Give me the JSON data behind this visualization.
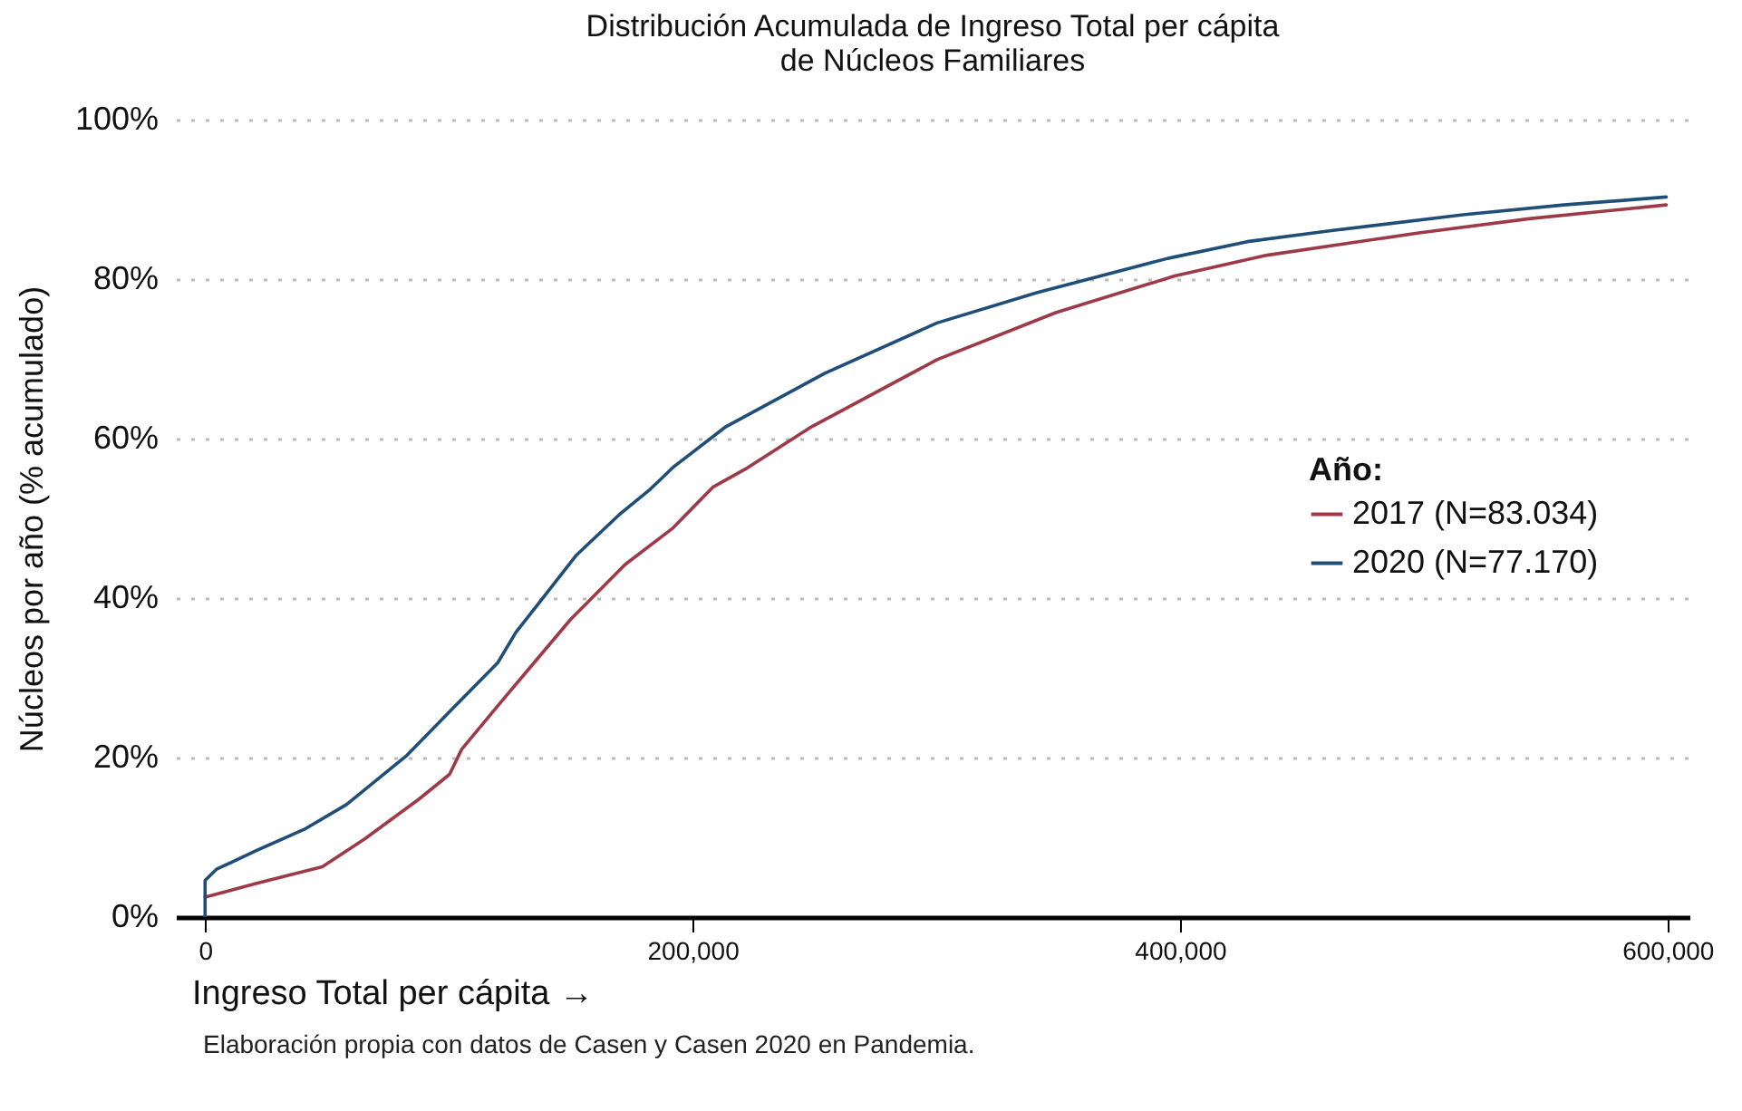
{
  "chart_data": {
    "type": "line",
    "title": "Distribución Acumulada de Ingreso Total per cápita\nde Núcleos Familiares",
    "xlabel": "Ingreso Total per cápita →",
    "ylabel": "Núcleos por año (% acumulado)",
    "legend_title": "Año:",
    "annotations": [
      "Elaboración propia con datos de Casen y Casen 2020 en Pandemia."
    ],
    "xlim": [
      -12000,
      609000
    ],
    "xticks": [
      {
        "value": 0,
        "label": "0"
      },
      {
        "value": 200000,
        "label": "200,000"
      },
      {
        "value": 400000,
        "label": "400,000"
      },
      {
        "value": 600000,
        "label": "600,000"
      }
    ],
    "ylim": [
      0,
      100
    ],
    "yticks": [
      {
        "value": 0,
        "label": "0%"
      },
      {
        "value": 20,
        "label": "20%"
      },
      {
        "value": 40,
        "label": "40%"
      },
      {
        "value": 60,
        "label": "60%"
      },
      {
        "value": 80,
        "label": "80%"
      },
      {
        "value": 100,
        "label": "100%"
      }
    ],
    "grid": "y",
    "legend": "right",
    "line_style": "solid",
    "series": [
      {
        "name": "2017 (N=83.034)",
        "color": "#9e3a47",
        "x": [
          0,
          20800,
          48100,
          65500,
          87800,
          100300,
          105200,
          120100,
          135000,
          149900,
          172300,
          192000,
          208300,
          221800,
          248900,
          300300,
          349000,
          397800,
          435700,
          498000,
          544000,
          599500
        ],
        "values": [
          2.5,
          4.2,
          6.3,
          9.8,
          14.8,
          17.9,
          21.0,
          26.5,
          31.9,
          37.3,
          44.2,
          48.8,
          53.9,
          56.2,
          61.5,
          69.9,
          75.8,
          80.4,
          83.0,
          85.8,
          87.6,
          89.3
        ]
      },
      {
        "name": "2020 (N=77.170)",
        "color": "#1f4e79",
        "x": [
          0,
          0,
          4700,
          20800,
          40700,
          58000,
          82900,
          102700,
          120100,
          127500,
          137500,
          152400,
          169700,
          182100,
          192000,
          213700,
          254300,
          300300,
          341200,
          395000,
          427600,
          462700,
          516900,
          557500,
          599500
        ],
        "values": [
          0,
          4.6,
          6.0,
          8.3,
          11.0,
          14.1,
          20.3,
          26.5,
          31.9,
          35.7,
          39.6,
          45.4,
          50.4,
          53.5,
          56.4,
          61.5,
          68.2,
          74.5,
          78.3,
          82.6,
          84.7,
          86.1,
          88.1,
          89.3,
          90.3
        ]
      }
    ]
  }
}
